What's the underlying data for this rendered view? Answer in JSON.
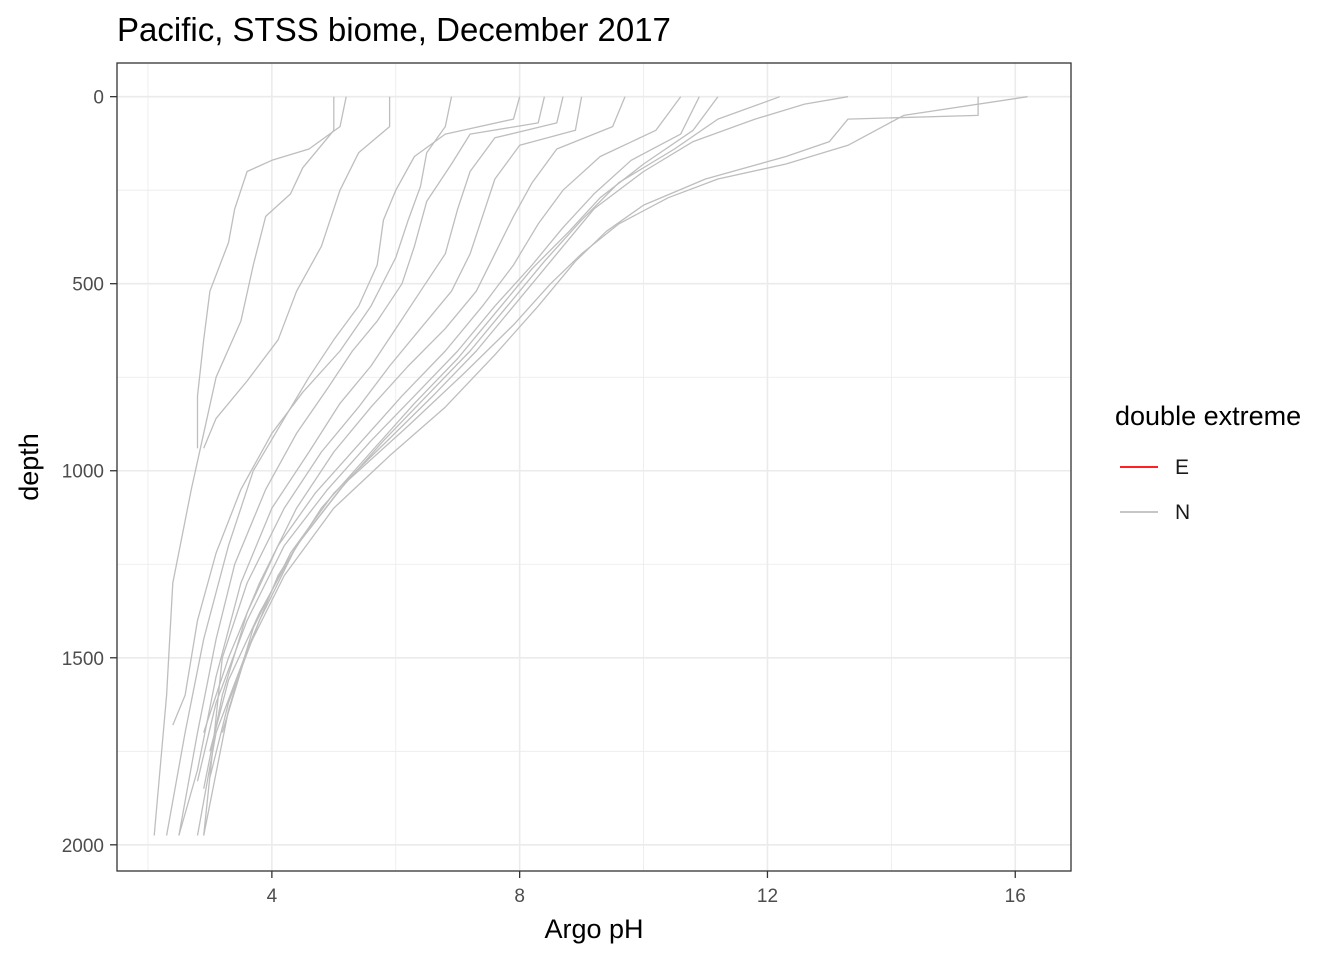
{
  "chart_data": {
    "type": "line",
    "title": "Pacific, STSS biome, December 2017",
    "xlabel": "Argo pH",
    "ylabel": "depth",
    "xlim": [
      1.5,
      16.9
    ],
    "ylim": [
      2070,
      -90
    ],
    "y_reversed": true,
    "x_ticks": [
      4,
      8,
      12,
      16
    ],
    "x_tick_labels": [
      "4",
      "8",
      "12",
      "16"
    ],
    "y_ticks": [
      0,
      500,
      1000,
      1500,
      2000
    ],
    "y_tick_labels": [
      "0",
      "500",
      "1000",
      "1500",
      "2000"
    ],
    "grid": true,
    "legend": {
      "title": "double extreme",
      "placement": "right",
      "entries": [
        {
          "label": "E",
          "color": "#ff0000"
        },
        {
          "label": "N",
          "color": "#bebebe"
        }
      ]
    },
    "colors": {
      "E": "#ff0000",
      "N": "#bebebe"
    },
    "series": [
      {
        "group": "N",
        "points": [
          [
            5.9,
            0
          ],
          [
            5.9,
            80
          ],
          [
            5.4,
            150
          ],
          [
            5.1,
            250
          ],
          [
            4.8,
            400
          ],
          [
            4.4,
            520
          ],
          [
            4.1,
            650
          ],
          [
            3.6,
            760
          ],
          [
            3.1,
            860
          ],
          [
            2.9,
            940
          ]
        ]
      },
      {
        "group": "N",
        "points": [
          [
            5.2,
            0
          ],
          [
            5.1,
            80
          ],
          [
            4.6,
            140
          ],
          [
            4.0,
            170
          ],
          [
            3.6,
            200
          ],
          [
            3.4,
            300
          ],
          [
            3.3,
            390
          ],
          [
            3.0,
            520
          ],
          [
            2.9,
            650
          ],
          [
            2.8,
            800
          ],
          [
            2.8,
            940
          ]
        ]
      },
      {
        "group": "N",
        "points": [
          [
            5.0,
            0
          ],
          [
            5.0,
            90
          ],
          [
            4.7,
            150
          ],
          [
            4.5,
            190
          ],
          [
            4.3,
            260
          ],
          [
            3.9,
            320
          ],
          [
            3.7,
            450
          ],
          [
            3.5,
            600
          ],
          [
            3.1,
            750
          ],
          [
            2.9,
            900
          ],
          [
            2.7,
            1050
          ],
          [
            2.4,
            1300
          ],
          [
            2.3,
            1600
          ],
          [
            2.1,
            1975
          ]
        ]
      },
      {
        "group": "N",
        "points": [
          [
            8.0,
            0
          ],
          [
            7.9,
            60
          ],
          [
            6.8,
            100
          ],
          [
            6.3,
            160
          ],
          [
            6.0,
            250
          ],
          [
            5.8,
            330
          ],
          [
            5.7,
            450
          ],
          [
            5.4,
            560
          ],
          [
            5.0,
            650
          ],
          [
            4.6,
            750
          ],
          [
            4.2,
            860
          ],
          [
            3.7,
            1000
          ],
          [
            3.3,
            1200
          ],
          [
            2.9,
            1450
          ],
          [
            2.6,
            1700
          ],
          [
            2.3,
            1975
          ]
        ]
      },
      {
        "group": "N",
        "points": [
          [
            8.4,
            0
          ],
          [
            8.3,
            70
          ],
          [
            7.2,
            100
          ],
          [
            6.9,
            180
          ],
          [
            6.5,
            280
          ],
          [
            6.3,
            400
          ],
          [
            6.1,
            500
          ],
          [
            5.7,
            600
          ],
          [
            5.3,
            680
          ],
          [
            4.9,
            780
          ],
          [
            4.4,
            900
          ],
          [
            3.9,
            1050
          ],
          [
            3.4,
            1250
          ],
          [
            3.1,
            1450
          ],
          [
            2.8,
            1700
          ],
          [
            2.5,
            1975
          ]
        ]
      },
      {
        "group": "N",
        "points": [
          [
            8.7,
            0
          ],
          [
            8.6,
            70
          ],
          [
            7.6,
            110
          ],
          [
            7.2,
            200
          ],
          [
            7.0,
            300
          ],
          [
            6.8,
            420
          ],
          [
            6.4,
            520
          ],
          [
            6.0,
            620
          ],
          [
            5.6,
            720
          ],
          [
            5.1,
            820
          ],
          [
            4.6,
            950
          ],
          [
            4.0,
            1100
          ],
          [
            3.5,
            1300
          ],
          [
            3.1,
            1550
          ],
          [
            2.8,
            1800
          ],
          [
            2.5,
            1975
          ]
        ]
      },
      {
        "group": "N",
        "points": [
          [
            9.0,
            0
          ],
          [
            8.9,
            90
          ],
          [
            8.0,
            130
          ],
          [
            7.6,
            220
          ],
          [
            7.4,
            320
          ],
          [
            7.2,
            420
          ],
          [
            6.9,
            520
          ],
          [
            6.4,
            620
          ],
          [
            5.9,
            720
          ],
          [
            5.4,
            830
          ],
          [
            4.8,
            950
          ],
          [
            4.2,
            1100
          ],
          [
            3.6,
            1300
          ],
          [
            3.2,
            1500
          ],
          [
            2.9,
            1975
          ]
        ]
      },
      {
        "group": "N",
        "points": [
          [
            9.7,
            0
          ],
          [
            9.5,
            80
          ],
          [
            8.6,
            140
          ],
          [
            8.2,
            230
          ],
          [
            7.9,
            320
          ],
          [
            7.6,
            420
          ],
          [
            7.3,
            520
          ],
          [
            6.8,
            620
          ],
          [
            6.2,
            720
          ],
          [
            5.6,
            830
          ],
          [
            5.0,
            950
          ],
          [
            4.4,
            1100
          ],
          [
            3.8,
            1300
          ],
          [
            3.3,
            1500
          ],
          [
            2.9,
            1700
          ]
        ]
      },
      {
        "group": "N",
        "points": [
          [
            10.6,
            0
          ],
          [
            10.2,
            90
          ],
          [
            9.3,
            160
          ],
          [
            8.7,
            250
          ],
          [
            8.3,
            340
          ],
          [
            7.9,
            450
          ],
          [
            7.4,
            560
          ],
          [
            6.8,
            680
          ],
          [
            6.1,
            800
          ],
          [
            5.4,
            930
          ],
          [
            4.7,
            1060
          ],
          [
            4.1,
            1200
          ],
          [
            3.6,
            1380
          ],
          [
            3.2,
            1600
          ],
          [
            2.9,
            1850
          ]
        ]
      },
      {
        "group": "N",
        "points": [
          [
            10.9,
            0
          ],
          [
            10.6,
            100
          ],
          [
            9.8,
            170
          ],
          [
            9.2,
            260
          ],
          [
            8.7,
            350
          ],
          [
            8.2,
            450
          ],
          [
            7.6,
            560
          ],
          [
            7.0,
            680
          ],
          [
            6.3,
            800
          ],
          [
            5.6,
            920
          ],
          [
            4.9,
            1050
          ],
          [
            4.2,
            1200
          ],
          [
            3.6,
            1400
          ],
          [
            3.1,
            1620
          ],
          [
            2.8,
            1830
          ]
        ]
      },
      {
        "group": "N",
        "points": [
          [
            11.2,
            0
          ],
          [
            10.8,
            90
          ],
          [
            10.0,
            180
          ],
          [
            9.3,
            270
          ],
          [
            8.8,
            360
          ],
          [
            8.2,
            460
          ],
          [
            7.6,
            580
          ],
          [
            7.0,
            700
          ],
          [
            6.3,
            820
          ],
          [
            5.6,
            950
          ],
          [
            4.8,
            1100
          ],
          [
            4.1,
            1280
          ],
          [
            3.6,
            1480
          ],
          [
            3.2,
            1700
          ]
        ]
      },
      {
        "group": "N",
        "points": [
          [
            12.2,
            0
          ],
          [
            11.2,
            60
          ],
          [
            10.5,
            140
          ],
          [
            9.6,
            230
          ],
          [
            9.0,
            330
          ],
          [
            8.4,
            440
          ],
          [
            7.8,
            560
          ],
          [
            7.2,
            680
          ],
          [
            6.5,
            800
          ],
          [
            5.8,
            920
          ],
          [
            5.1,
            1050
          ],
          [
            4.4,
            1200
          ],
          [
            3.8,
            1400
          ],
          [
            3.3,
            1620
          ],
          [
            3.0,
            1820
          ]
        ]
      },
      {
        "group": "N",
        "points": [
          [
            13.3,
            0
          ],
          [
            12.6,
            20
          ],
          [
            11.8,
            60
          ],
          [
            10.8,
            120
          ],
          [
            10.0,
            200
          ],
          [
            9.2,
            300
          ],
          [
            8.6,
            420
          ],
          [
            8.0,
            540
          ],
          [
            7.3,
            680
          ],
          [
            6.6,
            800
          ],
          [
            5.8,
            930
          ],
          [
            5.0,
            1060
          ],
          [
            4.3,
            1220
          ],
          [
            3.7,
            1420
          ],
          [
            3.3,
            1640
          ],
          [
            2.9,
            1975
          ]
        ]
      },
      {
        "group": "N",
        "points": [
          [
            15.4,
            0
          ],
          [
            15.4,
            50
          ],
          [
            13.3,
            60
          ],
          [
            13.0,
            120
          ],
          [
            12.3,
            160
          ],
          [
            11.0,
            220
          ],
          [
            10.0,
            290
          ],
          [
            9.4,
            360
          ],
          [
            8.9,
            440
          ],
          [
            8.3,
            560
          ],
          [
            7.6,
            690
          ],
          [
            6.8,
            830
          ],
          [
            5.9,
            960
          ],
          [
            5.0,
            1100
          ],
          [
            4.2,
            1280
          ],
          [
            3.6,
            1480
          ],
          [
            3.1,
            1700
          ],
          [
            2.8,
            1975
          ]
        ]
      },
      {
        "group": "N",
        "points": [
          [
            16.2,
            0
          ],
          [
            14.2,
            50
          ],
          [
            13.3,
            130
          ],
          [
            12.3,
            180
          ],
          [
            11.2,
            220
          ],
          [
            10.4,
            270
          ],
          [
            9.6,
            340
          ],
          [
            9.0,
            420
          ],
          [
            8.5,
            500
          ],
          [
            7.9,
            610
          ],
          [
            7.1,
            740
          ],
          [
            6.2,
            880
          ],
          [
            5.2,
            1030
          ],
          [
            4.4,
            1200
          ],
          [
            3.8,
            1380
          ],
          [
            3.3,
            1560
          ],
          [
            3.0,
            1750
          ]
        ]
      },
      {
        "group": "N",
        "points": [
          [
            6.9,
            0
          ],
          [
            6.8,
            80
          ],
          [
            6.5,
            150
          ],
          [
            6.4,
            240
          ],
          [
            6.2,
            330
          ],
          [
            6.0,
            430
          ],
          [
            5.6,
            560
          ],
          [
            5.1,
            680
          ],
          [
            4.5,
            790
          ],
          [
            4.0,
            900
          ],
          [
            3.5,
            1050
          ],
          [
            3.1,
            1220
          ],
          [
            2.8,
            1400
          ],
          [
            2.6,
            1600
          ],
          [
            2.4,
            1680
          ]
        ]
      }
    ]
  }
}
